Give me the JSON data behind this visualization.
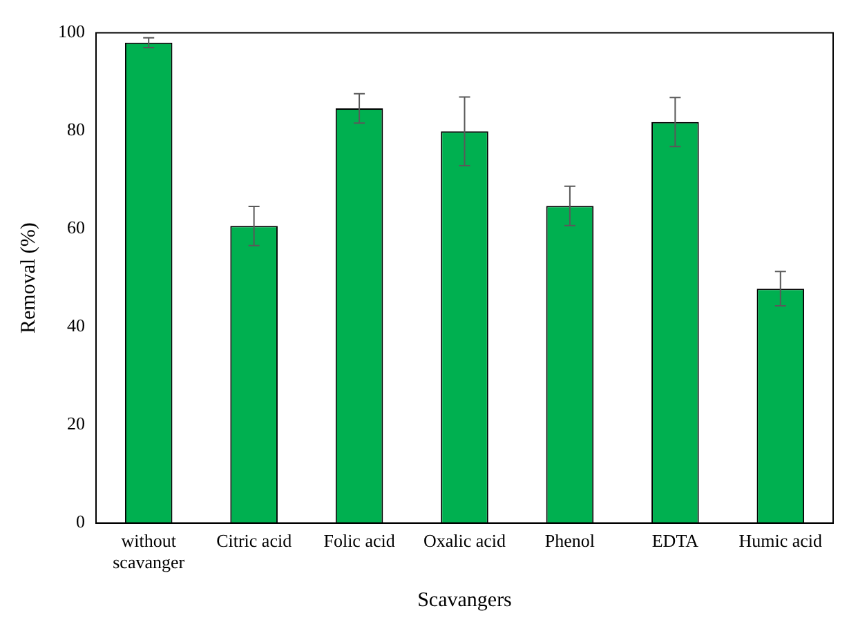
{
  "chart_data": {
    "type": "bar",
    "xlabel": "Scavangers",
    "ylabel": "Removal (%)",
    "categories": [
      "without scavanger",
      "Citric acid",
      "Folic acid",
      "Oxalic acid",
      "Phenol",
      "EDTA",
      "Humic acid"
    ],
    "values": [
      98,
      60.6,
      84.6,
      79.9,
      64.7,
      81.8,
      47.8
    ],
    "errors": [
      1,
      4,
      3,
      7,
      4,
      5,
      3.5
    ],
    "color": "#00b050",
    "ylim": [
      0,
      100
    ],
    "yticks": [
      0,
      20,
      40,
      60,
      80,
      100
    ],
    "grid": false,
    "legend": false
  }
}
